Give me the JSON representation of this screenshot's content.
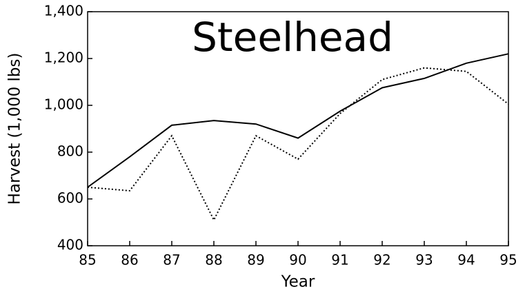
{
  "chart_data": {
    "type": "line",
    "title": "Steelhead",
    "xlabel": "Year",
    "ylabel": "Harvest (1,000 lbs)",
    "x": [
      85,
      86,
      87,
      88,
      89,
      90,
      91,
      92,
      93,
      94,
      95
    ],
    "series": [
      {
        "color": "#000000",
        "dash": "solid",
        "values": [
          650,
          780,
          915,
          935,
          920,
          860,
          975,
          1075,
          1115,
          1180,
          1220
        ]
      },
      {
        "color": "#000000",
        "dash": "dotted",
        "values": [
          650,
          635,
          870,
          510,
          870,
          770,
          965,
          1110,
          1160,
          1145,
          1005
        ]
      }
    ],
    "xlim": [
      85,
      95
    ],
    "xticks": [
      85,
      86,
      87,
      88,
      89,
      90,
      91,
      92,
      93,
      94,
      95
    ],
    "ylim": [
      400,
      1400
    ],
    "yticks": [
      400,
      600,
      800,
      {
        "value": 1000,
        "label": "1,000"
      },
      {
        "value": 1200,
        "label": "1,200"
      },
      {
        "value": 1400,
        "label": "1,400"
      }
    ],
    "grid": false
  }
}
